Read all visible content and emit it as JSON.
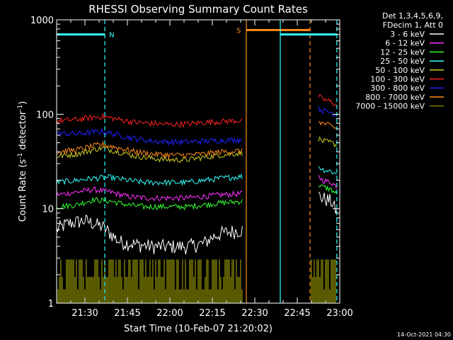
{
  "chart_data": {
    "type": "line",
    "title": "RHESSI Observing Summary Count Rates",
    "xlabel": "Start Time (10-Feb-07 21:20:02)",
    "ylabel_main": "Count Rate (s",
    "ylabel_sup1": "-1",
    "ylabel_mid": " detector",
    "ylabel_sup2": "-1",
    "ylabel_end": ")",
    "x_range_minutes": [
      21.3333,
      23.0
    ],
    "y_range": [
      1,
      1000
    ],
    "y_scale": "log",
    "x_ticks": [
      {
        "value": 21.5,
        "label": "21:30"
      },
      {
        "value": 21.75,
        "label": "21:45"
      },
      {
        "value": 22.0,
        "label": "22:00"
      },
      {
        "value": 22.25,
        "label": "22:15"
      },
      {
        "value": 22.5,
        "label": "22:30"
      },
      {
        "value": 22.75,
        "label": "22:45"
      },
      {
        "value": 23.0,
        "label": "23:00"
      }
    ],
    "y_ticks": [
      {
        "value": 1,
        "label": "1"
      },
      {
        "value": 10,
        "label": "10"
      },
      {
        "value": 100,
        "label": "100"
      },
      {
        "value": 1000,
        "label": "1000"
      }
    ],
    "legend_header": [
      "Det 1,3,4,5,6,9,",
      "FDecim 1, Att 0"
    ],
    "legend_position": "top-right",
    "series": [
      {
        "name": "3 - 6 keV",
        "color": "#ffffff",
        "segments": [
          {
            "x": [
              21.333,
              21.4,
              21.5,
              21.6,
              21.65,
              21.7,
              21.8,
              21.9,
              22.0,
              22.1,
              22.2,
              22.25,
              22.3,
              22.43
            ],
            "y": [
              6,
              7,
              7.5,
              6.5,
              5.5,
              4.5,
              4.2,
              4,
              4,
              4,
              4.3,
              5,
              5.5,
              6
            ]
          },
          {
            "x": [
              22.875,
              22.9,
              22.95,
              22.983
            ],
            "y": [
              14,
              13,
              12,
              9
            ]
          }
        ]
      },
      {
        "name": "6 - 12 keV",
        "color": "#ff33ff",
        "segments": [
          {
            "x": [
              21.333,
              21.45,
              21.55,
              21.65,
              21.75,
              21.85,
              22.0,
              22.1,
              22.2,
              22.3,
              22.43
            ],
            "y": [
              14,
              15,
              16,
              15,
              13.5,
              13,
              13,
              13,
              13.5,
              14,
              14.5
            ]
          },
          {
            "x": [
              22.875,
              22.9,
              22.95,
              22.983
            ],
            "y": [
              22,
              20,
              19,
              17
            ]
          }
        ]
      },
      {
        "name": "12 - 25 keV",
        "color": "#33ff33",
        "segments": [
          {
            "x": [
              21.333,
              21.45,
              21.55,
              21.65,
              21.75,
              21.85,
              22.0,
              22.1,
              22.2,
              22.3,
              22.43
            ],
            "y": [
              10.5,
              11,
              12.5,
              12,
              11,
              10.5,
              10.5,
              10.5,
              11,
              11.5,
              12
            ]
          },
          {
            "x": [
              22.875,
              22.9,
              22.95,
              22.983
            ],
            "y": [
              18,
              17,
              16,
              14
            ]
          }
        ]
      },
      {
        "name": "25 - 50 keV",
        "color": "#33ffff",
        "segments": [
          {
            "x": [
              21.333,
              21.45,
              21.55,
              21.65,
              21.75,
              21.85,
              22.0,
              22.1,
              22.2,
              22.3,
              22.43
            ],
            "y": [
              19,
              20,
              21,
              21.5,
              20,
              19,
              19,
              19,
              20,
              21,
              22
            ]
          },
          {
            "x": [
              22.875,
              22.9,
              22.95,
              22.983
            ],
            "y": [
              28,
              26,
              25,
              23
            ]
          }
        ]
      },
      {
        "name": "50 - 100 keV",
        "color": "#cccc22",
        "segments": [
          {
            "x": [
              21.333,
              21.45,
              21.55,
              21.6,
              21.7,
              21.8,
              21.9,
              22.0,
              22.1,
              22.2,
              22.3,
              22.43
            ],
            "y": [
              36,
              38,
              42,
              44,
              40,
              36,
              34,
              33,
              33,
              35,
              37,
              39
            ]
          },
          {
            "x": [
              22.875,
              22.9,
              22.95,
              22.983
            ],
            "y": [
              55,
              52,
              50,
              47
            ]
          }
        ]
      },
      {
        "name": "100 - 300 keV",
        "color": "#ff2222",
        "segments": [
          {
            "x": [
              21.333,
              21.45,
              21.55,
              21.6,
              21.7,
              21.8,
              21.9,
              22.0,
              22.1,
              22.2,
              22.3,
              22.43
            ],
            "y": [
              85,
              88,
              93,
              95,
              88,
              82,
              80,
              78,
              79,
              82,
              84,
              86
            ]
          },
          {
            "x": [
              22.875,
              22.9,
              22.95,
              22.983
            ],
            "y": [
              155,
              145,
              135,
              125
            ]
          }
        ]
      },
      {
        "name": "300 - 800 keV",
        "color": "#2222ff",
        "segments": [
          {
            "x": [
              21.333,
              21.45,
              21.55,
              21.6,
              21.7,
              21.8,
              21.9,
              22.0,
              22.1,
              22.2,
              22.3,
              22.43
            ],
            "y": [
              63,
              62,
              65,
              66,
              60,
              55,
              52,
              51,
              51,
              52,
              53,
              54
            ]
          },
          {
            "x": [
              22.875,
              22.9,
              22.95,
              22.983
            ],
            "y": [
              115,
              110,
              105,
              98
            ]
          }
        ]
      },
      {
        "name": "800 - 7000 keV",
        "color": "#ff8c1a",
        "segments": [
          {
            "x": [
              21.333,
              21.45,
              21.55,
              21.6,
              21.7,
              21.8,
              21.9,
              22.0,
              22.1,
              22.2,
              22.3,
              22.43
            ],
            "y": [
              40,
              42,
              46,
              48,
              44,
              40,
              38,
              37,
              37,
              38,
              40,
              41
            ]
          },
          {
            "x": [
              22.875,
              22.9,
              22.95,
              22.983
            ],
            "y": [
              85,
              80,
              75,
              70
            ]
          }
        ]
      },
      {
        "name": "7000 - 15000 keV",
        "color": "#808000",
        "segments": [
          {
            "x": [
              21.333,
              22.43
            ],
            "y": [
              1.4,
              1.4
            ]
          },
          {
            "x": [
              22.833,
              22.983
            ],
            "y": [
              1.4,
              1.4
            ]
          }
        ]
      }
    ],
    "annotations": [
      {
        "type": "flag",
        "label": "N",
        "color": "#33ffff",
        "x_start": 21.333,
        "x_end": 21.617,
        "y": 700,
        "start_style": "solid",
        "end_style": "dashed"
      },
      {
        "type": "flag",
        "label": "S",
        "color": "#ff8c1a",
        "x_start": 22.45,
        "x_end": 22.825,
        "y": 780,
        "start_style": "solid",
        "end_style": "dashed"
      },
      {
        "type": "flag",
        "label": "",
        "color": "#33ffff",
        "x_start": 22.65,
        "x_end": 22.983,
        "y": 700,
        "start_style": "solid",
        "end_style": "dashed"
      }
    ],
    "timestamp": "14-Oct-2021 04:30"
  }
}
